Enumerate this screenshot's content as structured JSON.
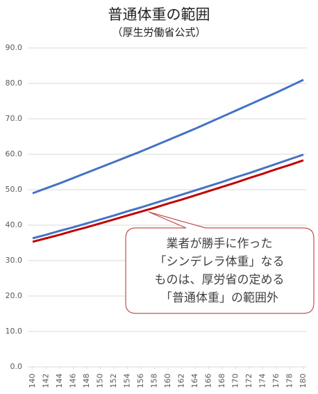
{
  "chart_data": {
    "type": "line",
    "title": "普通体重の範囲",
    "subtitle": "（厚生労働省公式）",
    "x": [
      140,
      142,
      144,
      146,
      148,
      150,
      152,
      154,
      156,
      158,
      160,
      162,
      164,
      166,
      168,
      170,
      172,
      174,
      176,
      178,
      180
    ],
    "xlim": [
      140,
      180
    ],
    "xticks": [
      140,
      142,
      144,
      146,
      148,
      150,
      152,
      154,
      156,
      158,
      160,
      162,
      164,
      166,
      168,
      170,
      172,
      174,
      176,
      178,
      180
    ],
    "ylim": [
      0,
      90
    ],
    "yticks": [
      {
        "value": 0,
        "label": "0.0"
      },
      {
        "value": 10,
        "label": "10.0"
      },
      {
        "value": 20,
        "label": "20.0"
      },
      {
        "value": 30,
        "label": "30.0"
      },
      {
        "value": 40,
        "label": "40.0"
      },
      {
        "value": 50,
        "label": "50.0"
      },
      {
        "value": 60,
        "label": "60.0"
      },
      {
        "value": 70,
        "label": "70.0"
      },
      {
        "value": 80,
        "label": "80.0"
      },
      {
        "value": 90,
        "label": "90.0"
      }
    ],
    "grid": true,
    "series": [
      {
        "color": "#4472c4",
        "values": [
          49.0,
          50.4,
          51.8,
          53.3,
          54.8,
          56.3,
          57.8,
          59.3,
          60.8,
          62.4,
          64.0,
          65.6,
          67.2,
          68.9,
          70.6,
          72.3,
          74.0,
          75.7,
          77.4,
          79.2,
          81.0
        ]
      },
      {
        "color": "#4472c4",
        "values": [
          36.3,
          37.3,
          38.4,
          39.4,
          40.5,
          41.6,
          42.7,
          43.9,
          45.0,
          46.2,
          47.4,
          48.6,
          49.8,
          51.0,
          52.2,
          53.5,
          54.7,
          56.0,
          57.3,
          58.6,
          59.9
        ]
      },
      {
        "color": "#c00000",
        "values": [
          35.3,
          36.3,
          37.3,
          38.4,
          39.4,
          40.5,
          41.6,
          42.7,
          43.8,
          44.9,
          46.1,
          47.2,
          48.4,
          49.6,
          50.8,
          52.0,
          53.3,
          54.5,
          55.8,
          57.0,
          58.3
        ]
      }
    ],
    "annotation": [
      "業者が勝手に作った",
      "「シンデレラ体重」なる",
      "ものは、厚労省の定める",
      "「普通体重」の範囲外"
    ]
  }
}
